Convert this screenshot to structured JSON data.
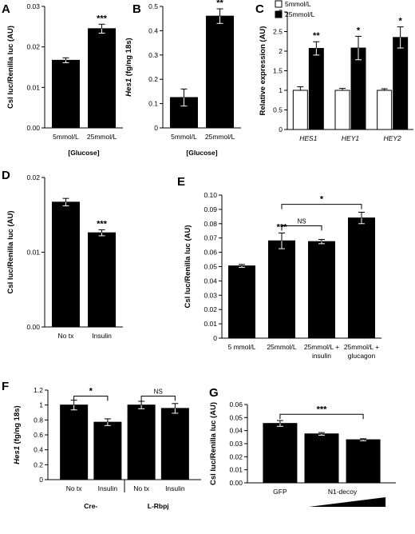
{
  "chart_data": [
    {
      "panel": "A",
      "type": "bar",
      "ylabel": "Csl luc/Renilla luc (AU)",
      "xlabel": "[Glucose]",
      "ylim": [
        0,
        0.03
      ],
      "yticks": [
        "0.00",
        "0.01",
        "0.02",
        "0.03"
      ],
      "categories": [
        "5mmol/L",
        "25mmol/L"
      ],
      "values": [
        0.0167,
        0.0245
      ],
      "errors": [
        0.0006,
        0.0011
      ],
      "labels": [
        "",
        "***"
      ]
    },
    {
      "panel": "B",
      "type": "bar",
      "ylabel_italic": "Hes1",
      "ylabel": "(fg/ng 18s)",
      "xlabel": "[Glucose]",
      "ylim": [
        0,
        0.5
      ],
      "yticks": [
        "0",
        "0.1",
        "0.2",
        "0.3",
        "0.4",
        "0.5"
      ],
      "categories": [
        "5mmol/L",
        "25mmol/L"
      ],
      "values": [
        0.125,
        0.46
      ],
      "errors": [
        0.035,
        0.03
      ],
      "labels": [
        "",
        "**"
      ]
    },
    {
      "panel": "C",
      "type": "bar",
      "ylabel": "Relative expression (AU)",
      "ylim": [
        0,
        3
      ],
      "yticks": [
        "0",
        "0.5",
        "1",
        "1.5",
        "2",
        "2.5",
        "3"
      ],
      "categories": [
        "HES1",
        "HEY1",
        "HEY2"
      ],
      "series": [
        {
          "name": "5mmol/L",
          "color": "#ffffff",
          "values": [
            1.0,
            1.0,
            1.0
          ],
          "errors": [
            0.09,
            0.05,
            0.04
          ],
          "labels": [
            "",
            "",
            ""
          ]
        },
        {
          "name": "25mmol/L",
          "color": "#000000",
          "values": [
            2.07,
            2.08,
            2.35
          ],
          "errors": [
            0.17,
            0.3,
            0.27
          ],
          "labels": [
            "**",
            "*",
            "*"
          ]
        }
      ],
      "legend": "top-left"
    },
    {
      "panel": "D",
      "type": "bar",
      "ylabel": "Csl luc/Renilla luc (AU)",
      "ylim": [
        0,
        0.02
      ],
      "yticks": [
        "0.00",
        "0.01",
        "0.02"
      ],
      "categories": [
        "No tx",
        "Insulin"
      ],
      "values": [
        0.0167,
        0.0126
      ],
      "errors": [
        0.0005,
        0.0004
      ],
      "labels": [
        "",
        "***"
      ]
    },
    {
      "panel": "E",
      "type": "bar",
      "ylabel": "Csl luc/Renilla luc (AU)",
      "ylim": [
        0,
        0.1
      ],
      "yticks": [
        "0",
        "0.01",
        "0.02",
        "0.03",
        "0.04",
        "0.05",
        "0.06",
        "0.07",
        "0.08",
        "0.09",
        "0.10"
      ],
      "categories": [
        "5 mmol/L",
        "25mmol/L",
        "25mmol/L + insulin",
        "25mmol/L + glucagon"
      ],
      "category_lines": [
        [
          "5 mmol/L"
        ],
        [
          "25mmol/L"
        ],
        [
          "25mmol/L +",
          "insulin"
        ],
        [
          "25mmol/L +",
          "glucagon"
        ]
      ],
      "values": [
        0.0505,
        0.068,
        0.0675,
        0.084
      ],
      "errors": [
        0.001,
        0.0055,
        0.0015,
        0.004
      ],
      "labels": [
        "",
        "***",
        "",
        ""
      ],
      "brackets": [
        {
          "from": 1,
          "to": 2,
          "text": "NS"
        },
        {
          "from": 1,
          "to": 3,
          "text": "*"
        }
      ]
    },
    {
      "panel": "F",
      "type": "bar",
      "ylabel_italic": "Hes1",
      "ylabel": "(fg/ng 18s)",
      "ylim": [
        0,
        1.2
      ],
      "yticks": [
        "0",
        "0.2",
        "0.4",
        "0.6",
        "0.8",
        "1",
        "1.2"
      ],
      "categories": [
        "No tx",
        "Insulin",
        "No tx",
        "Insulin"
      ],
      "groups": [
        "Cre-",
        "L-Rbpj"
      ],
      "values": [
        1.0,
        0.77,
        1.0,
        0.955
      ],
      "errors": [
        0.065,
        0.045,
        0.05,
        0.065
      ],
      "brackets": [
        {
          "from": 0,
          "to": 1,
          "text": "*"
        },
        {
          "from": 2,
          "to": 3,
          "text": "NS"
        }
      ]
    },
    {
      "panel": "G",
      "type": "bar",
      "ylabel": "Csl luc/Renilla luc (AU)",
      "ylim": [
        0,
        0.06
      ],
      "yticks": [
        "0.00",
        "0.01",
        "0.02",
        "0.03",
        "0.04",
        "0.05",
        "0.06"
      ],
      "categories": [
        "GFP",
        "N1-decoy",
        "N1-decoy"
      ],
      "category_labels": [
        "GFP",
        "N1-decoy"
      ],
      "values": [
        0.0455,
        0.0375,
        0.033
      ],
      "errors": [
        0.0022,
        0.001,
        0.0008
      ],
      "brackets": [
        {
          "from": 0,
          "to": 2,
          "text": "***"
        }
      ],
      "dose_wedge": true
    }
  ]
}
